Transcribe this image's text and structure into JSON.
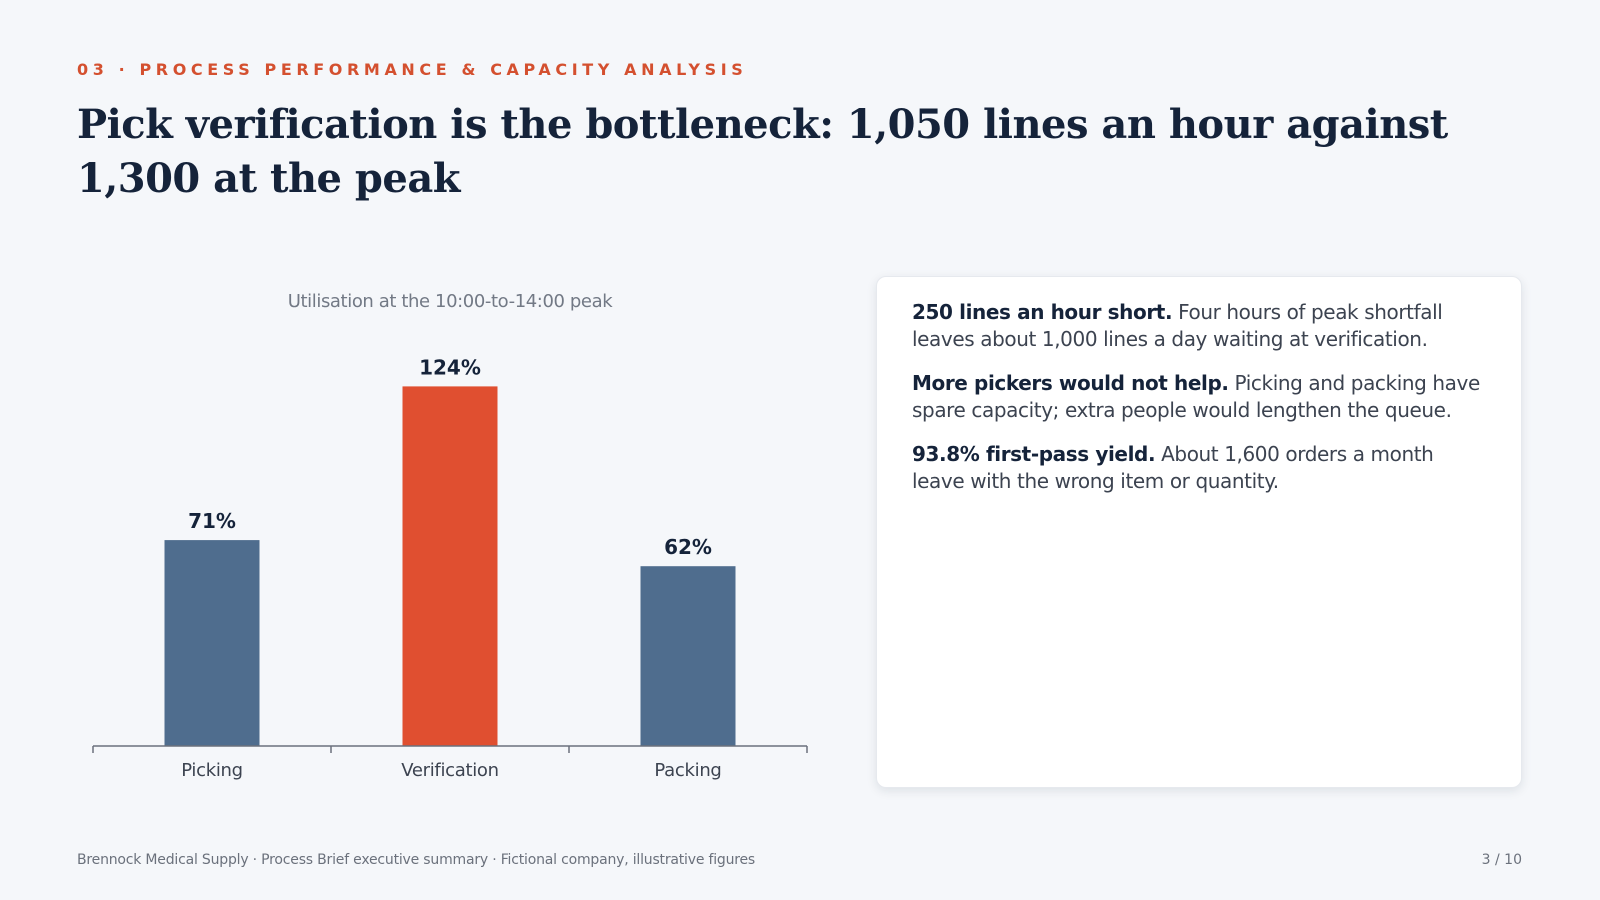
{
  "header": {
    "section_label": "03 · PROCESS PERFORMANCE & CAPACITY ANALYSIS",
    "headline": "Pick verification is the bottleneck: 1,050 lines an hour against 1,300 at the peak"
  },
  "chart_data": {
    "type": "bar",
    "title": "Utilisation at the 10:00-to-14:00 peak",
    "categories": [
      "Picking",
      "Verification",
      "Packing"
    ],
    "values": [
      71,
      124,
      62
    ],
    "value_labels": [
      "71%",
      "124%",
      "62%"
    ],
    "colors": [
      "#4f6d8e",
      "#e04f30",
      "#4f6d8e"
    ],
    "ylim": [
      0,
      140
    ],
    "grid": false,
    "legend": "none"
  },
  "panel": {
    "points": [
      {
        "lead": "250 lines an hour short.",
        "text": " Four hours of peak shortfall leaves about 1,000 lines a day waiting at verification."
      },
      {
        "lead": "More pickers would not help.",
        "text": " Picking and packing have spare capacity; extra people would lengthen the queue."
      },
      {
        "lead": "93.8% first-pass yield.",
        "text": " About 1,600 orders a month leave with the wrong item or quantity."
      }
    ]
  },
  "footer": {
    "left": "Brennock Medical Supply · Process Brief executive summary · Fictional company, illustrative figures",
    "page": "3 / 10"
  },
  "colors": {
    "accent": "#d4502f",
    "bar_default": "#4f6d8e",
    "bar_highlight": "#e04f30",
    "text_dark": "#15233a",
    "background": "#f5f7fa"
  }
}
